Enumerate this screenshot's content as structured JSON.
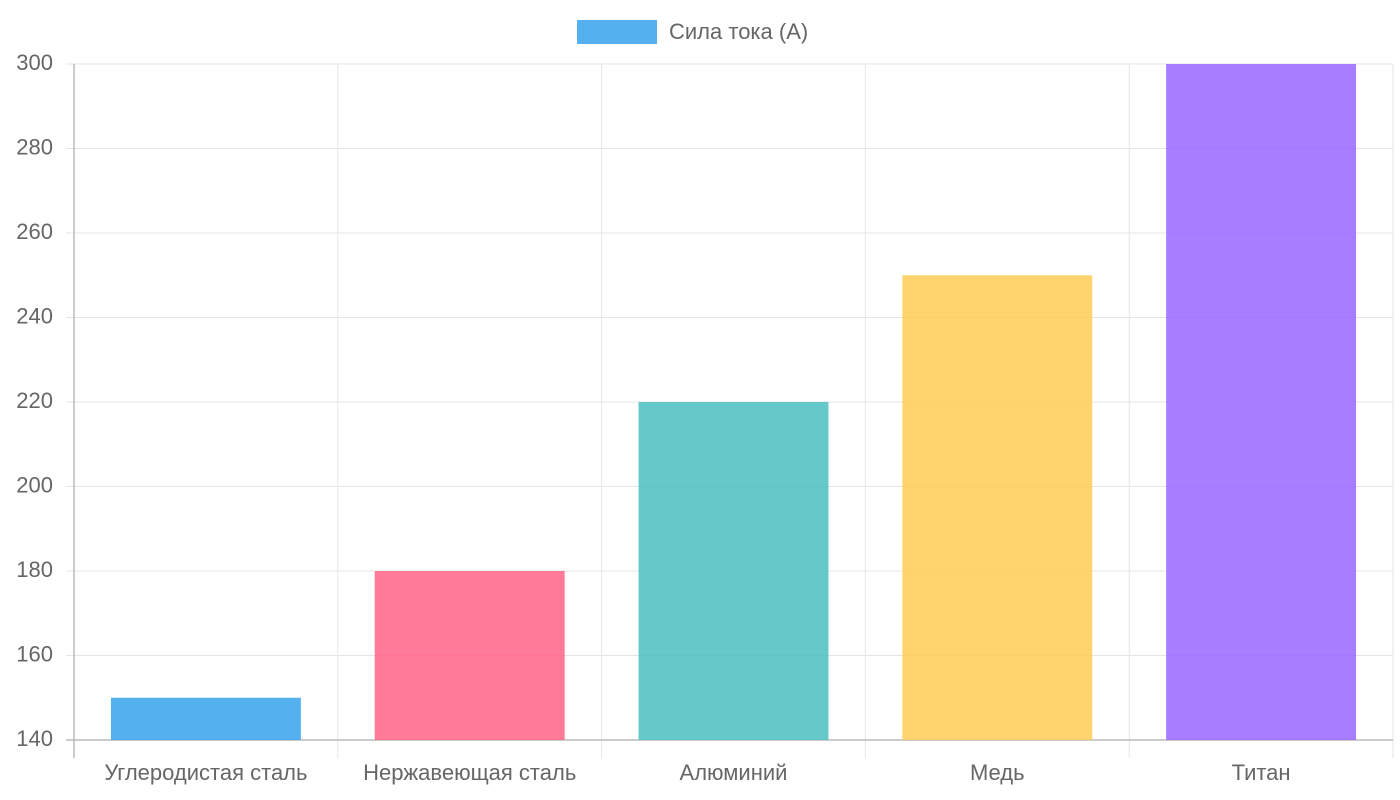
{
  "chart_data": {
    "type": "bar",
    "categories": [
      "Углеродистая сталь",
      "Нержавеющая сталь",
      "Алюминий",
      "Медь",
      "Титан"
    ],
    "series": [
      {
        "name": "Сила тока (А)",
        "colors": [
          "#36a2eb",
          "#ff6384",
          "#4bc0c0",
          "#ffcd56",
          "#9966ff"
        ],
        "values": [
          150,
          180,
          220,
          250,
          300
        ]
      }
    ],
    "ylim": [
      140,
      300
    ],
    "yticks": [
      140,
      160,
      180,
      200,
      220,
      240,
      260,
      280,
      300
    ],
    "grid": true,
    "legend": "top"
  }
}
